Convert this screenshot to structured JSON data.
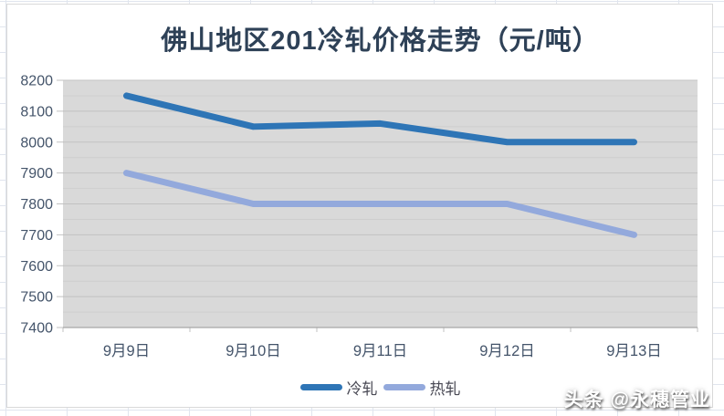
{
  "watermark": {
    "text": "头条 @永穗管业"
  },
  "colors": {
    "title": "#2e4157",
    "axis_label": "#44546a",
    "legend_label": "#4a4a55",
    "plot_bg": "#d9d9d9",
    "grid_major": "#c2c2c2",
    "grid_minor": "#cecece",
    "axis_line": "#a6a6a6",
    "chart_border": "#d9d9d9",
    "spreadsheet_grid": "#e0e5ee",
    "watermark_text": "#ffffff",
    "cold_rolled_line": "#2e75b6",
    "hot_rolled_line": "#93a9dc"
  },
  "chart_data": {
    "type": "line",
    "title": "佛山地区201冷轧价格走势（元/吨）",
    "xlabel": "",
    "ylabel": "",
    "categories": [
      "9月9日",
      "9月10日",
      "9月11日",
      "9月12日",
      "9月13日"
    ],
    "series": [
      {
        "name": "冷轧",
        "key": "cold-rolled",
        "color": "#2e75b6",
        "values": [
          8150,
          8050,
          8060,
          8000,
          8000
        ]
      },
      {
        "name": "热轧",
        "key": "hot-rolled",
        "color": "#93a9dc",
        "values": [
          7900,
          7800,
          7800,
          7800,
          7700
        ]
      }
    ],
    "ylim": [
      7400,
      8200
    ],
    "y_major_step": 100,
    "y_minor_step": 50,
    "y_tick_labels": [
      "7400",
      "7500",
      "7600",
      "7700",
      "7800",
      "7900",
      "8000",
      "8100",
      "8200"
    ],
    "grid": true,
    "legend_position": "bottom"
  }
}
